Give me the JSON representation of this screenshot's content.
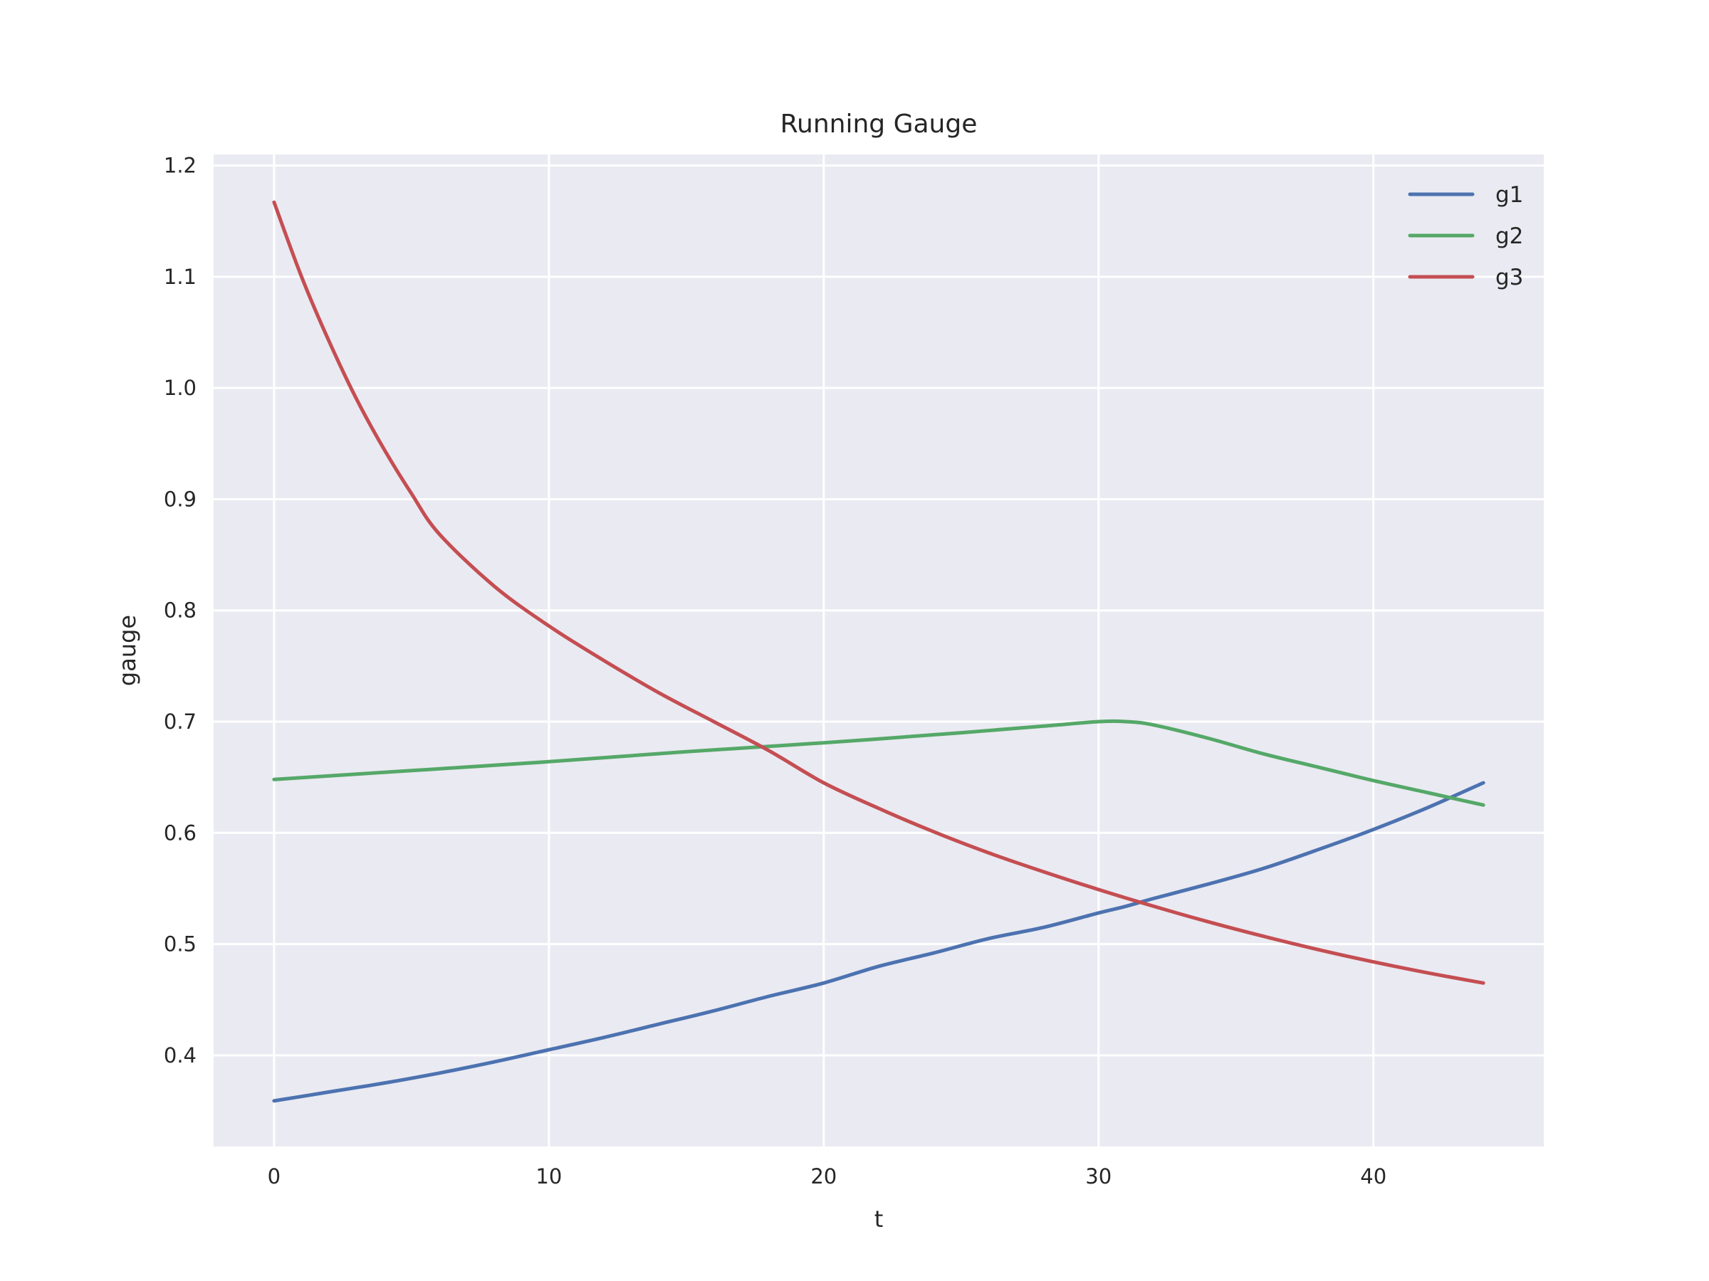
{
  "chart_data": {
    "type": "line",
    "title": "Running Gauge",
    "xlabel": "t",
    "ylabel": "gauge",
    "xlim": [
      -2.2,
      46.2
    ],
    "ylim": [
      0.318,
      1.21
    ],
    "xticks": [
      0,
      10,
      20,
      30,
      40
    ],
    "yticks": [
      0.4,
      0.5,
      0.6,
      0.7,
      0.8,
      0.9,
      1.0,
      1.1,
      1.2
    ],
    "x_tick_labels": [
      "0",
      "10",
      "20",
      "30",
      "40"
    ],
    "y_tick_labels": [
      "0.4",
      "0.5",
      "0.6",
      "0.7",
      "0.8",
      "0.9",
      "1.0",
      "1.1",
      "1.2"
    ],
    "grid": true,
    "legend_position": "top-right",
    "background": "#eaeaf2",
    "series": [
      {
        "name": "g1",
        "color": "#4c72b0",
        "x": [
          0,
          2,
          4,
          6,
          8,
          10,
          12,
          14,
          16,
          18,
          20,
          22,
          24,
          26,
          28,
          30,
          31,
          32,
          34,
          36,
          38,
          40,
          42,
          44
        ],
        "values": [
          0.359,
          0.367,
          0.375,
          0.384,
          0.394,
          0.405,
          0.416,
          0.428,
          0.44,
          0.453,
          0.465,
          0.48,
          0.492,
          0.505,
          0.515,
          0.528,
          0.534,
          0.541,
          0.554,
          0.568,
          0.585,
          0.603,
          0.623,
          0.645
        ]
      },
      {
        "name": "g2",
        "color": "#55a868",
        "x": [
          0,
          5,
          10,
          15,
          20,
          25,
          28,
          30,
          31,
          32,
          34,
          36,
          38,
          40,
          42,
          44
        ],
        "values": [
          0.648,
          0.656,
          0.664,
          0.673,
          0.681,
          0.69,
          0.696,
          0.7,
          0.7,
          0.697,
          0.685,
          0.671,
          0.659,
          0.647,
          0.636,
          0.625
        ]
      },
      {
        "name": "g3",
        "color": "#c44e52",
        "x": [
          0,
          1,
          2,
          3,
          4,
          5,
          6,
          8,
          10,
          12,
          14,
          16,
          18,
          20,
          22,
          24,
          26,
          28,
          30,
          32,
          34,
          36,
          38,
          40,
          42,
          44
        ],
        "values": [
          1.167,
          1.1,
          1.042,
          0.99,
          0.945,
          0.905,
          0.869,
          0.822,
          0.786,
          0.755,
          0.726,
          0.7,
          0.674,
          0.645,
          0.622,
          0.601,
          0.582,
          0.565,
          0.549,
          0.534,
          0.52,
          0.507,
          0.495,
          0.484,
          0.474,
          0.465
        ]
      }
    ]
  }
}
